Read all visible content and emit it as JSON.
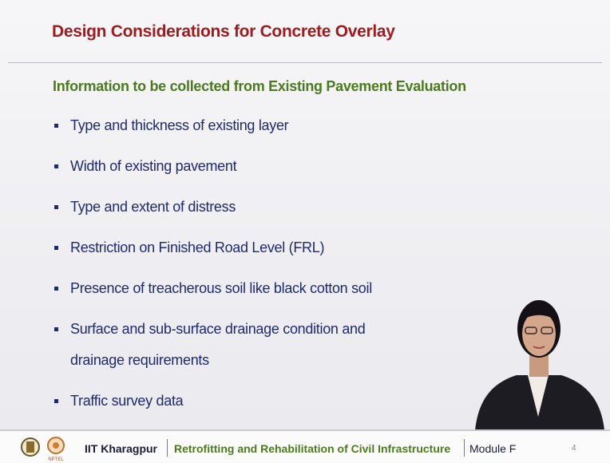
{
  "header": {
    "title": "Design Considerations for Concrete Overlay"
  },
  "body": {
    "subtitle": "Information to be collected from Existing Pavement Evaluation",
    "bullets": [
      {
        "lines": [
          "Type and thickness of existing layer"
        ]
      },
      {
        "lines": [
          "Width of existing pavement"
        ]
      },
      {
        "lines": [
          "Type and extent of distress"
        ]
      },
      {
        "lines": [
          "Restriction on Finished Road Level (FRL)"
        ]
      },
      {
        "lines": [
          "Presence of treacherous soil like black cotton soil"
        ]
      },
      {
        "lines": [
          "Surface and sub-surface drainage condition and",
          "drainage requirements"
        ]
      },
      {
        "lines": [
          "Traffic survey data"
        ]
      }
    ]
  },
  "footer": {
    "institute": "IIT Kharagpur",
    "course": "Retrofitting and Rehabilitation of Civil Infrastructure",
    "module": "Module F",
    "page": "4"
  }
}
